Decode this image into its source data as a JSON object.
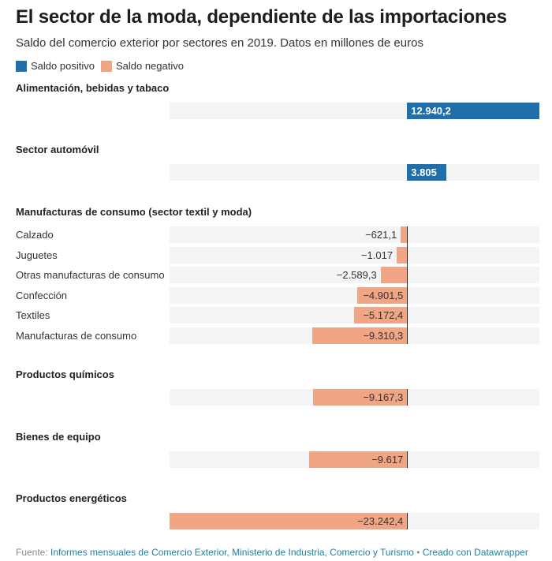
{
  "header": {
    "title": "El sector de la moda, dependiente de las importaciones",
    "subtitle": "Saldo del comercio exterior por sectores en 2019. Datos en millones de euros"
  },
  "legend": [
    {
      "label": "Saldo positivo",
      "color": "#1f6fad"
    },
    {
      "label": "Saldo negativo",
      "color": "#f0a585"
    }
  ],
  "chart_data": {
    "type": "bar",
    "orientation": "horizontal",
    "title": "El sector de la moda, dependiente de las importaciones",
    "subtitle": "Saldo del comercio exterior por sectores en 2019. Datos en millones de euros",
    "xlim": [
      -23242.4,
      12940.2
    ],
    "groups": [
      {
        "title": "Alimentación, bebidas y tabaco",
        "rows": [
          {
            "label": "",
            "value": 12940.2,
            "display": "12.940,2"
          }
        ]
      },
      {
        "title": "Sector automóvil",
        "rows": [
          {
            "label": "",
            "value": 3805,
            "display": "3.805"
          }
        ]
      },
      {
        "title": "Manufacturas de consumo (sector textil y moda)",
        "rows": [
          {
            "label": "Calzado",
            "value": -621.1,
            "display": "−621,1"
          },
          {
            "label": "Juguetes",
            "value": -1017,
            "display": "−1.017"
          },
          {
            "label": "Otras manufacturas de consumo",
            "value": -2589.3,
            "display": "−2.589,3"
          },
          {
            "label": "Confección",
            "value": -4901.5,
            "display": "−4.901,5"
          },
          {
            "label": "Textiles",
            "value": -5172.4,
            "display": "−5.172,4"
          },
          {
            "label": "Manufacturas de consumo",
            "value": -9310.3,
            "display": "−9.310,3"
          }
        ]
      },
      {
        "title": "Productos químicos",
        "rows": [
          {
            "label": "",
            "value": -9167.3,
            "display": "−9.167,3"
          }
        ]
      },
      {
        "title": "Bienes de equipo",
        "rows": [
          {
            "label": "",
            "value": -9617,
            "display": "−9.617"
          }
        ]
      },
      {
        "title": "Productos energéticos",
        "rows": [
          {
            "label": "",
            "value": -23242.4,
            "display": "−23.242,4"
          }
        ]
      }
    ],
    "colors": {
      "positive": "#1f6fad",
      "negative": "#f0a585"
    }
  },
  "footer": {
    "source_prefix": "Fuente: ",
    "source_link": "Informes mensuales de Comercio Exterior, Ministerio de Industria, Comercio y Turismo",
    "separator": " • ",
    "credit_link": "Creado con Datawrapper"
  }
}
